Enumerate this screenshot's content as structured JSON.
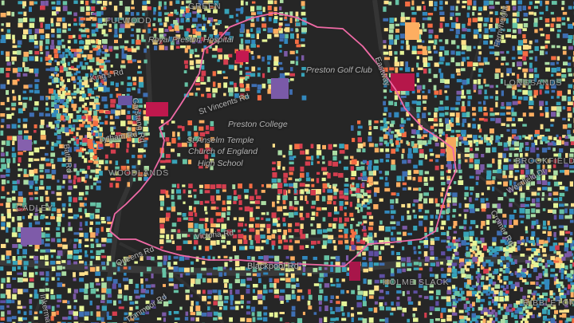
{
  "map": {
    "boundary_color": "#f06aa6",
    "background_color": "#262626",
    "road_color": "#3a3a3a",
    "palette": [
      "#5e4fa2",
      "#7b5aa6",
      "#3f6fb3",
      "#3288bd",
      "#38a3b8",
      "#66c2a5",
      "#abdda4",
      "#e6f598",
      "#fee08b",
      "#fdae61",
      "#f46d43",
      "#d53e4f",
      "#b8164f"
    ]
  },
  "labels": {
    "fulwood": "FULWOOD",
    "green": "GREEN",
    "royal_preston_hospital": "Royal Preston Hospital",
    "preston_golf_club": "Preston Golf Club",
    "eastway": "Eastway",
    "ferny_height": "Fernyheight",
    "longsands": "LONGSANDS",
    "st_vincents_rd": "St Vincents Rd",
    "lytham": "Lytham Rd",
    "garstang": "Garstang Rd",
    "preston_college": "Preston College",
    "st_anselm": "St Anselm Temple",
    "church_of_england": "Church of England",
    "high_school": "High School",
    "brookfield": "BROOKFIELD",
    "westfield": "Westfield Dr",
    "woodlands": "WOODLANDS",
    "cadley": "CADLEY",
    "victoria_rd": "Victoria Rd",
    "queens_rd": "Queens Rd",
    "blackpool_rd": "Blackpool Rd",
    "holme_slack": "HOLME SLACK",
    "ribbleton": "RIBBLETON",
    "tranmoor": "Tranmoor Rd",
    "inkerman": "Inkerman",
    "bath_rd": "Bath Rd",
    "kings_rd": "King's Rd",
    "cromer": "Cromer Rd"
  }
}
